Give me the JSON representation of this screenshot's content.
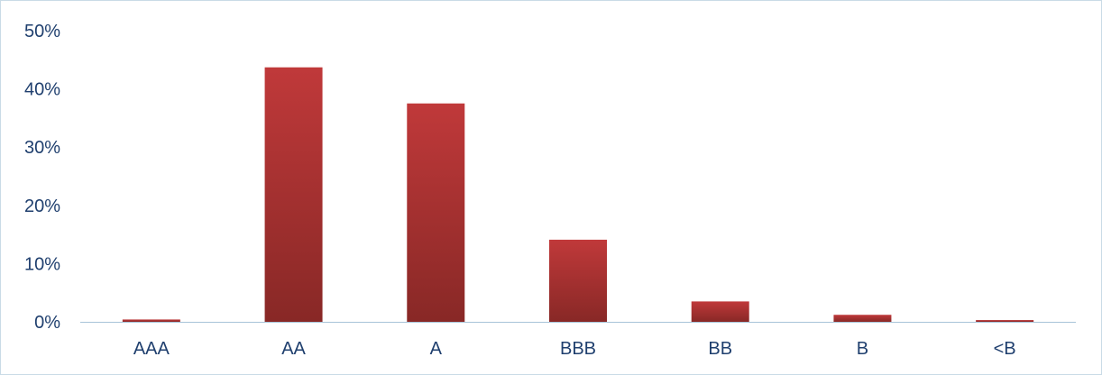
{
  "chart_data": {
    "type": "bar",
    "categories": [
      "AAA",
      "AA",
      "A",
      "BBB",
      "BB",
      "B",
      "<B"
    ],
    "values": [
      0.4,
      43.7,
      37.5,
      14.1,
      3.5,
      1.2,
      0.3
    ],
    "y_ticks": [
      "0%",
      "10%",
      "20%",
      "30%",
      "40%",
      "50%"
    ],
    "ylim": [
      0,
      50
    ],
    "grid": false,
    "legend": "none"
  },
  "colors": {
    "bar_top": "#c0393a",
    "bar_bottom": "#882826",
    "axis": "#a8c4d8",
    "label": "#1f3f6e"
  }
}
